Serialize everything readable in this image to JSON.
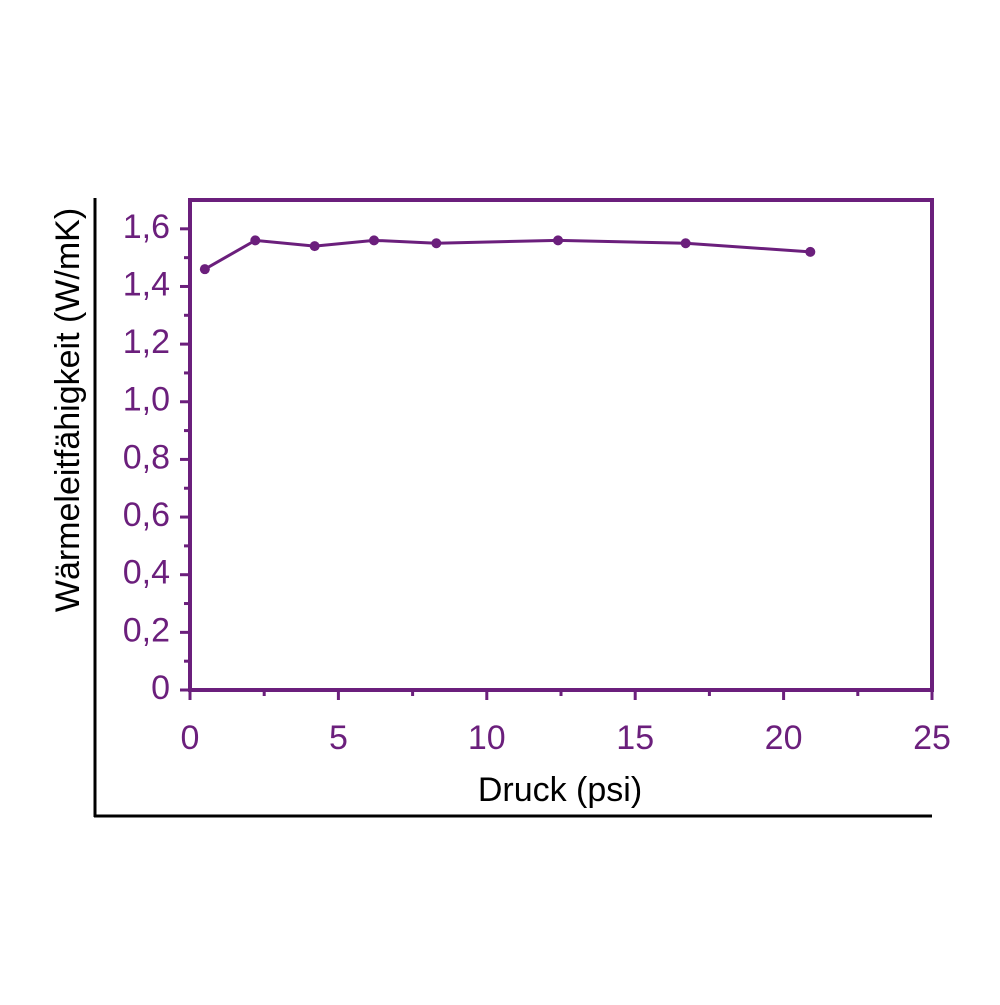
{
  "chart_data": {
    "type": "line",
    "x_label": "Druck (psi)",
    "y_label": "Wärmeleitfähigkeit (W/mK)",
    "color": "#6b1f7c",
    "x": [
      0.5,
      2.2,
      4.2,
      6.2,
      8.3,
      12.4,
      16.7,
      20.9
    ],
    "values": [
      1.46,
      1.56,
      1.54,
      1.56,
      1.55,
      1.56,
      1.55,
      1.52
    ],
    "xlim": [
      0,
      25
    ],
    "xticks": [
      0,
      5,
      10,
      15,
      20,
      25
    ],
    "ylim": [
      0,
      1.7
    ],
    "yticks": [
      0,
      {
        "value": 0.2,
        "label": "0,2"
      },
      {
        "value": 0.4,
        "label": "0,4"
      },
      {
        "value": 0.6,
        "label": "0,6"
      },
      {
        "value": 0.8,
        "label": "0,8"
      },
      {
        "value": 1.0,
        "label": "1,0"
      },
      {
        "value": 1.2,
        "label": "1,2"
      },
      {
        "value": 1.4,
        "label": "1,4"
      },
      {
        "value": 1.6,
        "label": "1,6"
      }
    ]
  }
}
